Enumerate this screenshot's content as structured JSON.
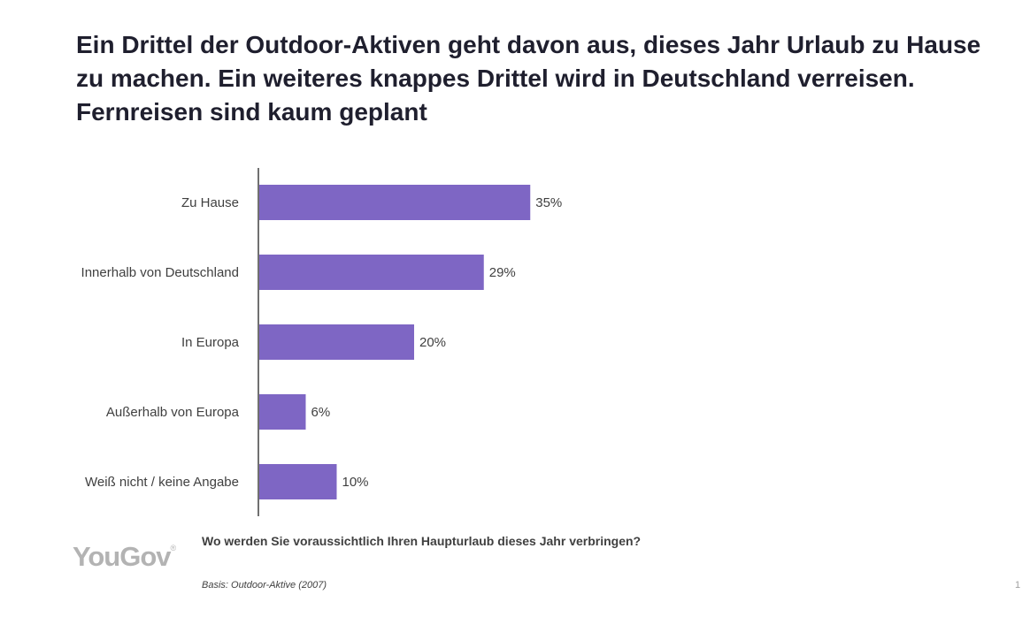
{
  "title": "Ein Drittel der Outdoor-Aktiven geht davon aus, dieses Jahr Urlaub zu Hause zu machen. Ein weiteres knappes Drittel wird in Deutschland verreisen. Fernreisen sind kaum geplant",
  "question": "Wo werden Sie voraussichtlich Ihren Haupturlaub dieses Jahr verbringen?",
  "basis": "Basis: Outdoor-Aktive (2007)",
  "logo": "YouGov",
  "page_number": "1",
  "colors": {
    "bar": "#7e66c4",
    "axis": "#404040",
    "logo": "#b3b3b3"
  },
  "chart_data": {
    "type": "bar",
    "orientation": "horizontal",
    "categories": [
      "Zu Hause",
      "Innerhalb von Deutschland",
      "In Europa",
      "Außerhalb von Europa",
      "Weiß nicht / keine Angabe"
    ],
    "values": [
      35,
      29,
      20,
      6,
      10
    ],
    "value_labels": [
      "35%",
      "29%",
      "20%",
      "6%",
      "10%"
    ],
    "unit": "%",
    "xlim": [
      0,
      100
    ],
    "grid": false,
    "legend": "none"
  }
}
